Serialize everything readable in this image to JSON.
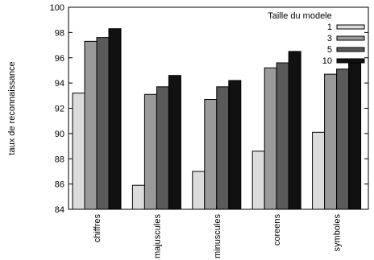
{
  "chart_data": {
    "type": "bar",
    "title": "",
    "xlabel": "",
    "ylabel": "taux de reconnaissance",
    "ylim": [
      84,
      100
    ],
    "yticks": [
      84,
      86,
      88,
      90,
      92,
      94,
      96,
      98,
      100
    ],
    "categories": [
      "chiffres",
      "majuscules",
      "minuscules",
      "coreens",
      "symboles"
    ],
    "legend_title": "Taille du modele",
    "legend_position": "top-right",
    "grid": false,
    "series": [
      {
        "name": "1",
        "color": "#dcdcdc",
        "values": [
          93.2,
          85.9,
          87.0,
          88.6,
          90.1
        ]
      },
      {
        "name": "3",
        "color": "#9a9a9a",
        "values": [
          97.3,
          93.1,
          92.7,
          95.2,
          94.7
        ]
      },
      {
        "name": "5",
        "color": "#5a5a5a",
        "values": [
          97.6,
          93.7,
          93.7,
          95.6,
          95.1
        ]
      },
      {
        "name": "10",
        "color": "#111111",
        "values": [
          98.3,
          94.6,
          94.2,
          96.5,
          95.6
        ]
      }
    ]
  }
}
